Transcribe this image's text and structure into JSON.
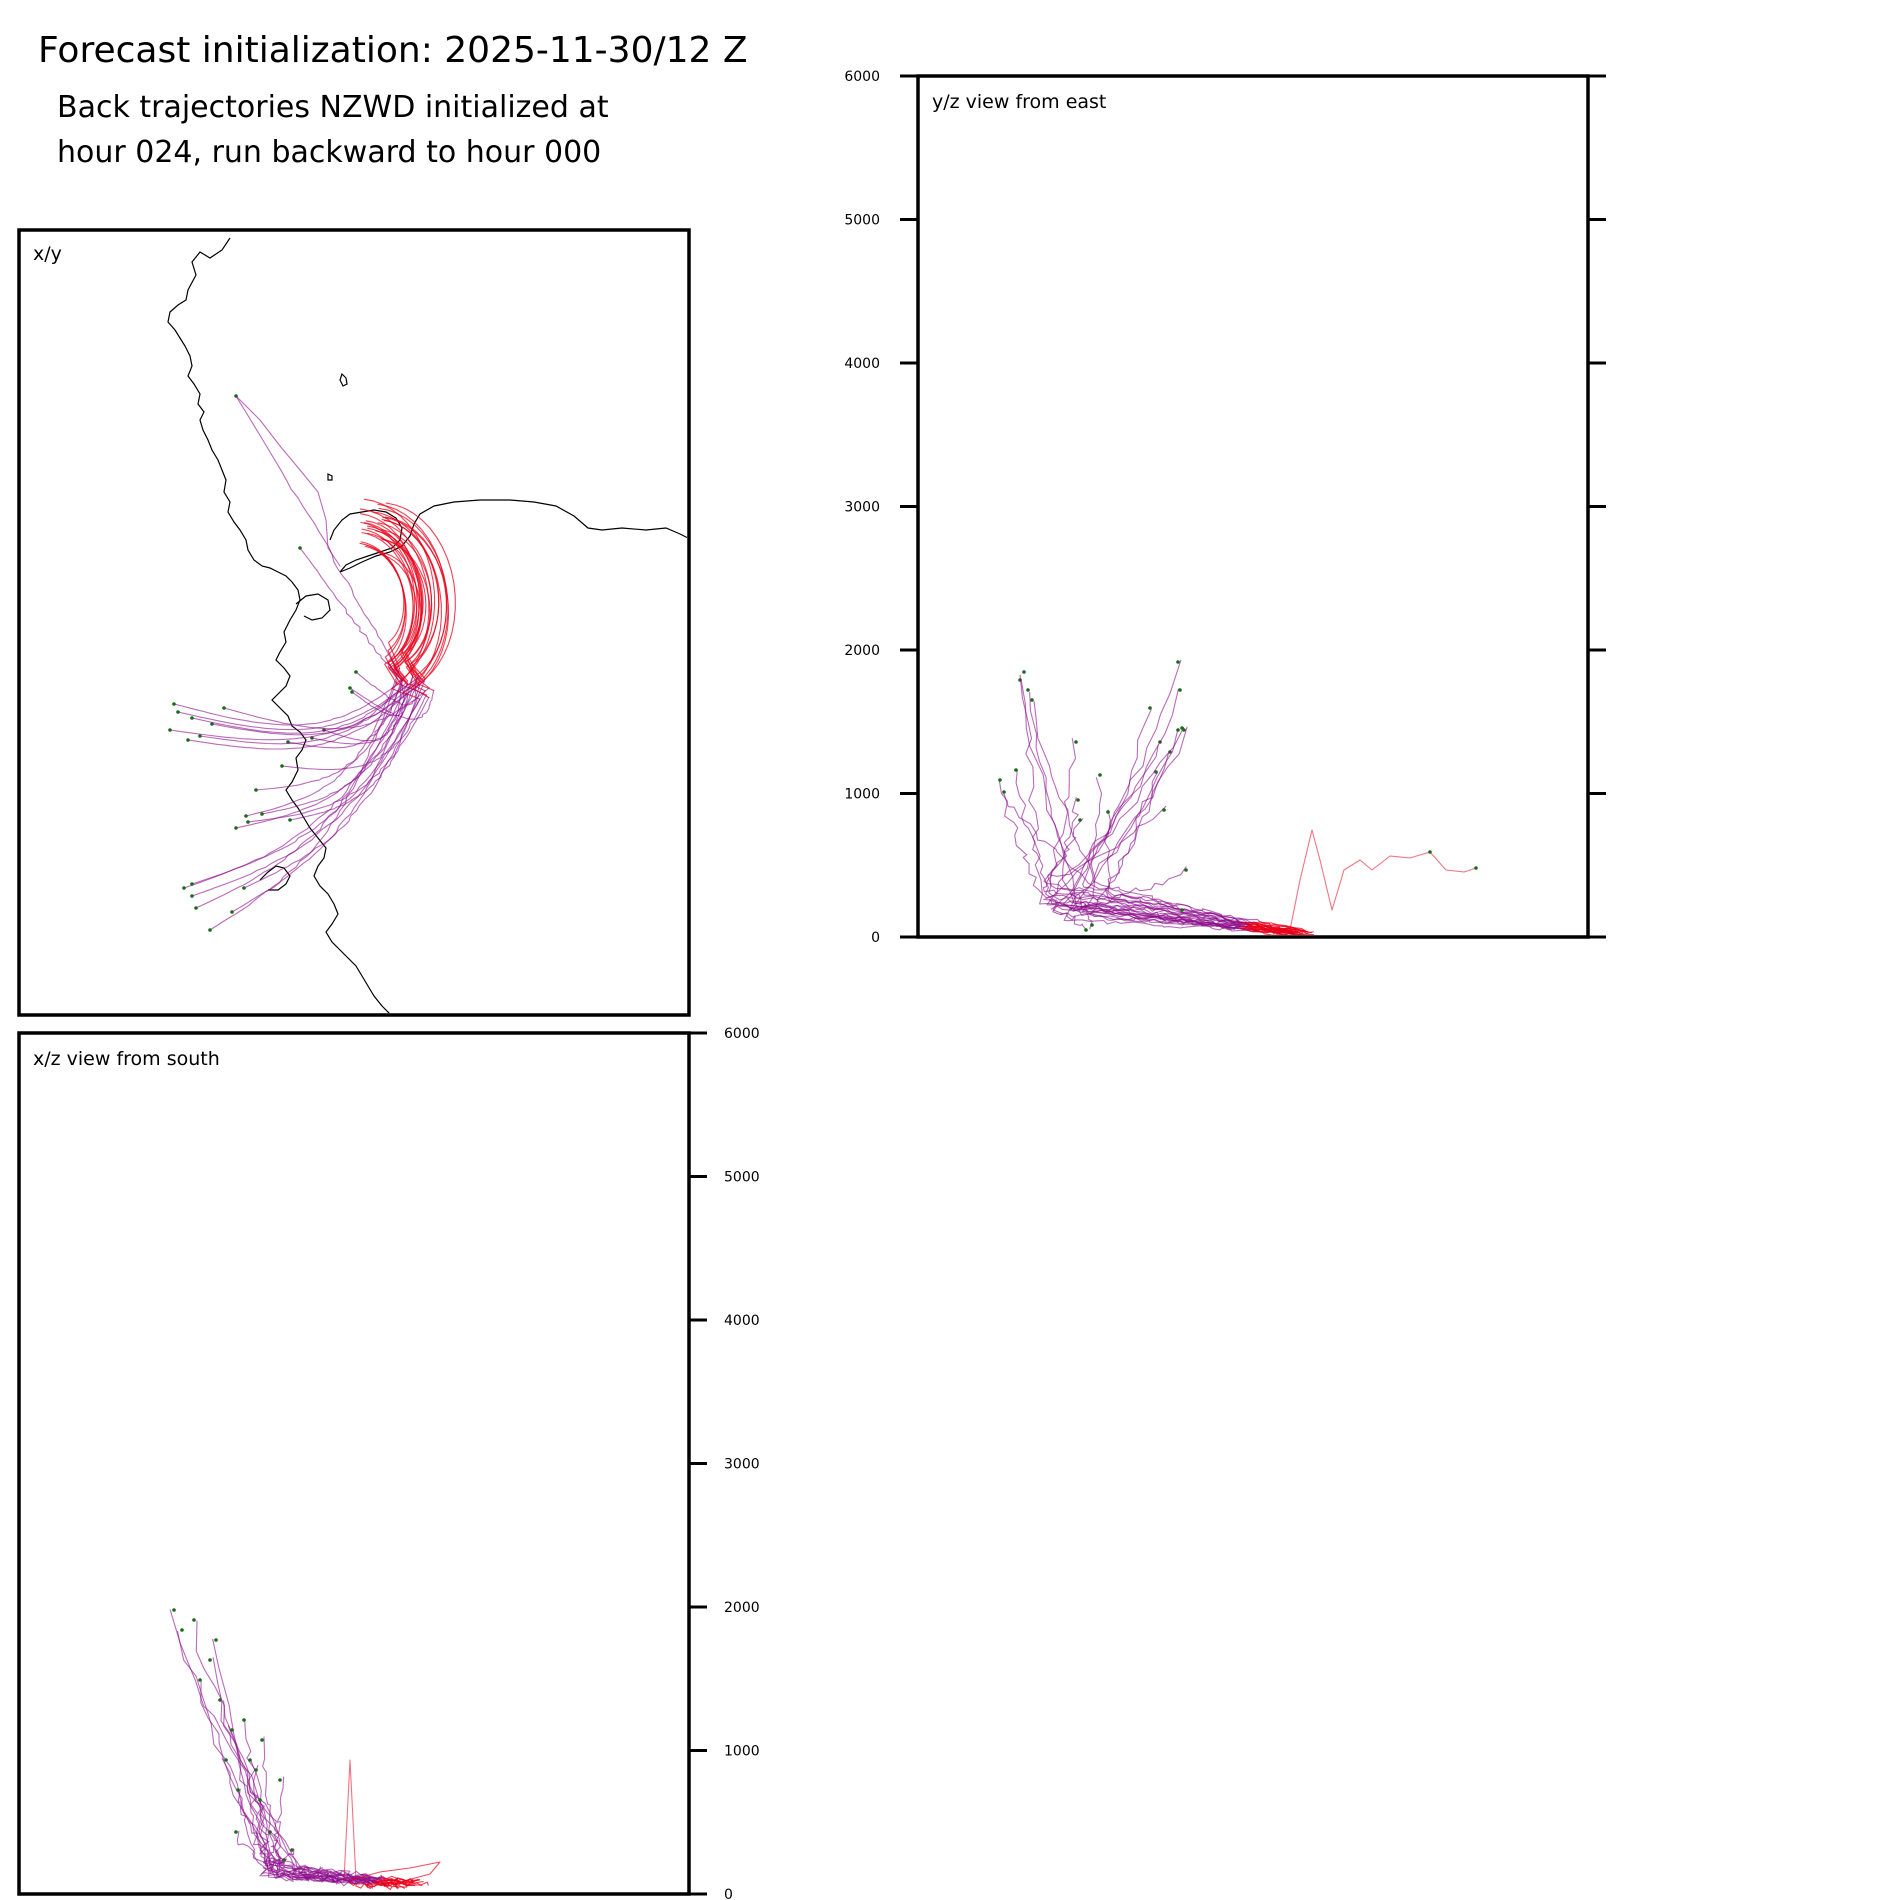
{
  "figure": {
    "title": "Forecast initialization: 2025-11-30/12 Z",
    "subtitle_line1": "Back trajectories NZWD initialized at",
    "subtitle_line2": "hour 024, run backward to hour 000"
  },
  "colors": {
    "trajectory_recent": "#e8001a",
    "trajectory_old": "#8b0a8a",
    "start_marker": "#1a6b1a",
    "coastline": "#000000"
  },
  "chart_data": [
    {
      "type": "line",
      "panel": "xy",
      "title": "x/y",
      "xlabel": "",
      "ylabel": "",
      "x": [
        "x"
      ],
      "y": [
        "y"
      ]
    },
    {
      "type": "line",
      "panel": "yz",
      "title": "y/z view from east",
      "ylim": [
        0,
        6000
      ],
      "yticks": [
        "0",
        "1000",
        "2000",
        "3000",
        "4000",
        "5000",
        "6000"
      ],
      "ytick_side": "left",
      "x": [
        "y"
      ],
      "y": [
        "z"
      ]
    },
    {
      "type": "line",
      "panel": "xz",
      "title": "x/z view from south",
      "ylim": [
        0,
        6000
      ],
      "yticks": [
        "0",
        "1000",
        "2000",
        "3000",
        "4000",
        "5000",
        "6000"
      ],
      "ytick_side": "right",
      "x": [
        "x"
      ],
      "y": [
        "z"
      ]
    }
  ]
}
